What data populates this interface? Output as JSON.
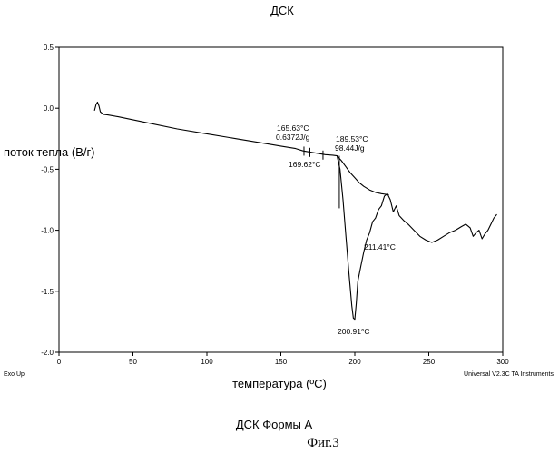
{
  "figure": {
    "title": "ДСК",
    "x_axis_title": "температура (ºC)",
    "y_axis_title": "поток тепла (В/г)",
    "exo_label": "Exo Up",
    "instrument": "Universal V2.3C TA Instruments",
    "caption": "ДСК Формы А",
    "figure_number": "Фиг.3",
    "line_color": "#000000"
  },
  "chart_data": {
    "type": "line",
    "title": "ДСК",
    "xlabel": "температура (ºC)",
    "ylabel": "поток тепла (В/г)",
    "xlim": [
      0,
      300
    ],
    "ylim": [
      -2.0,
      0.5
    ],
    "x_ticks": [
      "0",
      "50",
      "100",
      "150",
      "200",
      "250",
      "300"
    ],
    "y_ticks": [
      "0.5",
      "0.0",
      "-0.5",
      "-1.0",
      "-1.5",
      "-2.0"
    ],
    "grid": false,
    "legend": "none",
    "series": [
      {
        "x": [
          24,
          25,
          26,
          27,
          28,
          30,
          33,
          40,
          60,
          80,
          100,
          120,
          140,
          150,
          160,
          165,
          170,
          175,
          180,
          185,
          188,
          190,
          192,
          194,
          196,
          198,
          199,
          200,
          201,
          202,
          204,
          206,
          208,
          210,
          212,
          214,
          216,
          218,
          220,
          222,
          224,
          226,
          228,
          230,
          233,
          236,
          240,
          244,
          248,
          252,
          256,
          260,
          264,
          268,
          272,
          275,
          278,
          280,
          282,
          284,
          286,
          288,
          290,
          292,
          294,
          296
        ],
        "y": [
          -0.02,
          0.03,
          0.05,
          0.02,
          -0.03,
          -0.05,
          -0.055,
          -0.07,
          -0.12,
          -0.17,
          -0.21,
          -0.25,
          -0.29,
          -0.31,
          -0.33,
          -0.35,
          -0.36,
          -0.37,
          -0.38,
          -0.385,
          -0.39,
          -0.5,
          -0.75,
          -1.05,
          -1.35,
          -1.62,
          -1.72,
          -1.73,
          -1.6,
          -1.42,
          -1.3,
          -1.18,
          -1.08,
          -1.02,
          -0.93,
          -0.9,
          -0.83,
          -0.8,
          -0.72,
          -0.7,
          -0.75,
          -0.85,
          -0.8,
          -0.88,
          -0.92,
          -0.95,
          -1.0,
          -1.05,
          -1.08,
          -1.1,
          -1.08,
          -1.05,
          -1.02,
          -1.0,
          -0.97,
          -0.95,
          -0.98,
          -1.05,
          -1.02,
          -1.0,
          -1.07,
          -1.03,
          -1.0,
          -0.95,
          -0.9,
          -0.87
        ]
      },
      {
        "x": [
          188,
          191,
          194,
          197,
          200,
          203,
          206,
          210,
          214,
          218,
          221,
          223
        ],
        "y": [
          -0.39,
          -0.43,
          -0.48,
          -0.53,
          -0.57,
          -0.61,
          -0.64,
          -0.67,
          -0.69,
          -0.7,
          -0.705,
          -0.71
        ]
      }
    ],
    "annotations": [
      {
        "text": "165.63°C",
        "x": 165.63
      },
      {
        "text": "0.6372J/g",
        "x": 165.63
      },
      {
        "text": "169.62°C",
        "x": 169.62
      },
      {
        "text": "189.53°C",
        "x": 189.53
      },
      {
        "text": "98.44J/g",
        "x": 189.53
      },
      {
        "text": "211.41°C",
        "x": 211.41
      },
      {
        "text": "200.91°C",
        "x": 200.91
      }
    ]
  }
}
